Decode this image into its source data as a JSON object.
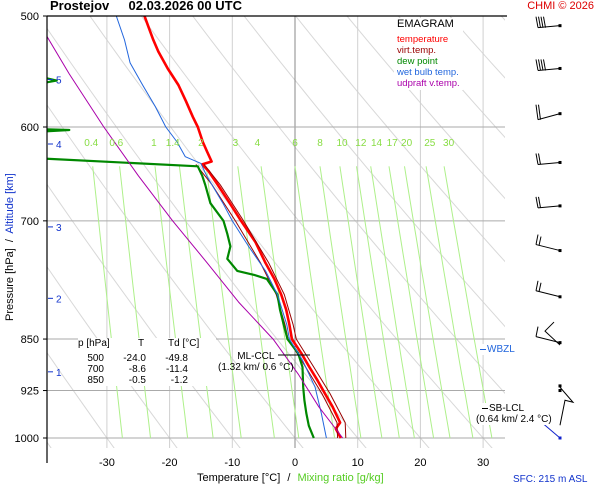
{
  "header": {
    "station": "Prostejov",
    "datetime": "02.03.2026 00 UTC",
    "copyright": "CHMI © 2026"
  },
  "legend": {
    "title": "EMAGRAM",
    "items": [
      {
        "label": "temperature",
        "color": "#ff0000"
      },
      {
        "label": "virt.temp.",
        "color": "#990000"
      },
      {
        "label": "dew point",
        "color": "#008800"
      },
      {
        "label": "wet bulb temp.",
        "color": "#2266dd"
      },
      {
        "label": "udpraft v.temp.",
        "color": "#aa00aa"
      }
    ]
  },
  "table": {
    "headers": [
      "p [hPa]",
      "T",
      "Td [°C]"
    ],
    "rows": [
      [
        "500",
        "-24.0",
        "-49.8"
      ],
      [
        "700",
        "-8.6",
        "-11.4"
      ],
      [
        "850",
        "-0.5",
        "-1.2"
      ]
    ]
  },
  "annotations": {
    "ml_ccl": {
      "label": "ML-CCL",
      "detail": "(1.32 km/ 0.6 °C)"
    },
    "sb_lcl": {
      "label": "SB-LCL",
      "detail": "(0.64 km/ 2.4 °C)"
    },
    "wbzl": {
      "label": "WBZL"
    },
    "sfc": "SFC: 215 m ASL"
  },
  "chart_data": {
    "type": "line",
    "title": "Prostejov 02.03.2026 00 UTC",
    "subtitle": "EMAGRAM",
    "xlabel": "Temperature [°C]",
    "xlabel2": "Mixing ratio [g/kg]",
    "ylabel": "Pressure [hPa]",
    "ylabel2": "Altitude [km]",
    "xlim": [
      -38,
      35
    ],
    "ylim": [
      1000,
      500
    ],
    "x_ticks": [
      -30,
      -20,
      -10,
      0,
      10,
      20,
      30
    ],
    "pressure_ticks": [
      500,
      600,
      700,
      850,
      925,
      1000
    ],
    "altitude_ticks": [
      {
        "km": 5,
        "p": 555
      },
      {
        "km": 4,
        "p": 617
      },
      {
        "km": 3,
        "p": 707
      },
      {
        "km": 2,
        "p": 795
      },
      {
        "km": 1,
        "p": 897
      }
    ],
    "mixing_ratio_labels": [
      "0.4",
      "0.6",
      "1",
      "1.4",
      "2",
      "3",
      "4",
      "6",
      "8",
      "10",
      "12",
      "14",
      "17",
      "20",
      "25",
      "30"
    ],
    "mixing_ratio_label_temps_at_630hPa": [
      -32.5,
      -28.5,
      -22.5,
      -19.5,
      -15,
      -9.5,
      -6,
      0,
      4,
      7.5,
      10.5,
      13,
      15.5,
      17.8,
      21.5,
      24.5
    ],
    "grid": true,
    "series": [
      {
        "name": "temperature",
        "color": "#ff0000",
        "points": [
          [
            500,
            -24.0
          ],
          [
            510,
            -23.3
          ],
          [
            520,
            -22.6
          ],
          [
            530,
            -21.8
          ],
          [
            545,
            -20.3
          ],
          [
            560,
            -18.6
          ],
          [
            575,
            -17.4
          ],
          [
            590,
            -16.3
          ],
          [
            600,
            -15.5
          ],
          [
            615,
            -14.7
          ],
          [
            625,
            -14.0
          ],
          [
            635,
            -13.3
          ],
          [
            638,
            -14.8
          ],
          [
            645,
            -13.8
          ],
          [
            660,
            -12.3
          ],
          [
            680,
            -10.4
          ],
          [
            700,
            -8.6
          ],
          [
            725,
            -6.3
          ],
          [
            750,
            -4.7
          ],
          [
            770,
            -3.3
          ],
          [
            790,
            -2.2
          ],
          [
            810,
            -1.4
          ],
          [
            830,
            -0.9
          ],
          [
            850,
            -0.5
          ],
          [
            870,
            1.0
          ],
          [
            890,
            2.3
          ],
          [
            910,
            3.6
          ],
          [
            930,
            4.8
          ],
          [
            950,
            6.0
          ],
          [
            975,
            7.2
          ],
          [
            985,
            6.5
          ],
          [
            1000,
            7.3
          ]
        ]
      },
      {
        "name": "virt.temp.",
        "color": "#990000",
        "points": [
          [
            638,
            -14.5
          ],
          [
            660,
            -11.9
          ],
          [
            700,
            -8.2
          ],
          [
            750,
            -4.2
          ],
          [
            790,
            -1.7
          ],
          [
            830,
            -0.3
          ],
          [
            850,
            0.2
          ],
          [
            890,
            3.0
          ],
          [
            930,
            5.6
          ],
          [
            975,
            8.0
          ],
          [
            1000,
            8.1
          ]
        ]
      },
      {
        "name": "dew point",
        "color": "#008800",
        "points": [
          [
            500,
            -60
          ],
          [
            548,
            -60
          ],
          [
            552,
            -41
          ],
          [
            556,
            -38
          ],
          [
            560,
            -42
          ],
          [
            563,
            -60
          ],
          [
            590,
            -60
          ],
          [
            601,
            -47
          ],
          [
            603,
            -36
          ],
          [
            608,
            -50
          ],
          [
            618,
            -57
          ],
          [
            622,
            -60
          ],
          [
            627,
            -44
          ],
          [
            632,
            -40
          ],
          [
            640,
            -15.5
          ],
          [
            650,
            -14.8
          ],
          [
            660,
            -14.3
          ],
          [
            680,
            -13.5
          ],
          [
            700,
            -11.4
          ],
          [
            715,
            -10.8
          ],
          [
            730,
            -10.3
          ],
          [
            745,
            -10.8
          ],
          [
            760,
            -9.2
          ],
          [
            765,
            -6.5
          ],
          [
            770,
            -4.5
          ],
          [
            790,
            -2.8
          ],
          [
            810,
            -2.4
          ],
          [
            830,
            -1.8
          ],
          [
            850,
            -1.2
          ],
          [
            870,
            0.5
          ],
          [
            890,
            1.2
          ],
          [
            920,
            1.3
          ],
          [
            940,
            1.5
          ],
          [
            960,
            1.8
          ],
          [
            980,
            2.2
          ],
          [
            1000,
            3.0
          ]
        ]
      },
      {
        "name": "wet bulb temp.",
        "color": "#2266dd",
        "points": [
          [
            500,
            -28.5
          ],
          [
            520,
            -27.2
          ],
          [
            540,
            -26.3
          ],
          [
            560,
            -24.3
          ],
          [
            580,
            -22.3
          ],
          [
            600,
            -20.6
          ],
          [
            615,
            -18.8
          ],
          [
            630,
            -17.5
          ],
          [
            637,
            -15.0
          ],
          [
            650,
            -14.1
          ],
          [
            680,
            -11.5
          ],
          [
            700,
            -10.0
          ],
          [
            730,
            -7.4
          ],
          [
            760,
            -4.7
          ],
          [
            790,
            -2.8
          ],
          [
            830,
            -1.3
          ],
          [
            850,
            -0.9
          ],
          [
            880,
            1.2
          ],
          [
            920,
            3.2
          ],
          [
            960,
            4.2
          ],
          [
            1000,
            5.0
          ]
        ]
      },
      {
        "name": "udpraft v.temp.",
        "color": "#aa00aa",
        "points": [
          [
            500,
            -41.5
          ],
          [
            550,
            -36.0
          ],
          [
            600,
            -30.5
          ],
          [
            650,
            -25.0
          ],
          [
            700,
            -19.5
          ],
          [
            750,
            -14.0
          ],
          [
            800,
            -9.0
          ],
          [
            850,
            -3.5
          ],
          [
            900,
            0.5
          ],
          [
            950,
            3.8
          ],
          [
            1000,
            7.6
          ]
        ]
      }
    ],
    "wind_barbs_pressure": [
      508,
      545,
      587,
      636,
      683,
      735,
      793,
      855,
      925,
      1000
    ]
  }
}
